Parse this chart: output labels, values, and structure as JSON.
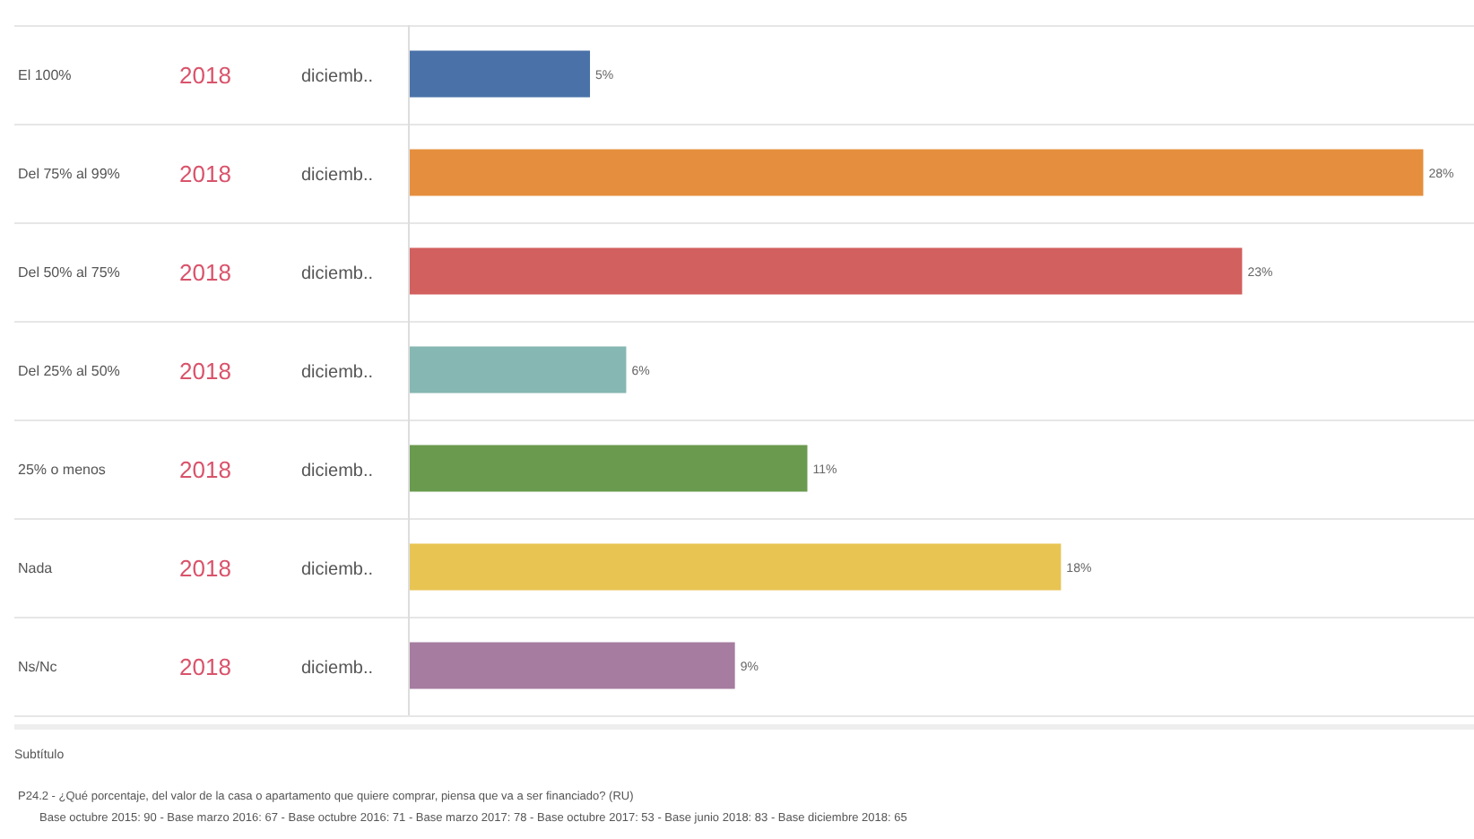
{
  "chart_data": {
    "type": "bar",
    "orientation": "horizontal",
    "categories": [
      "El 100%",
      "Del 75% al 99%",
      "Del 50% al 75%",
      "Del 25% al 50%",
      "25% o menos",
      "Nada",
      "Ns/Nc"
    ],
    "values": [
      5,
      28,
      23,
      6,
      11,
      18,
      9
    ],
    "colors": [
      "#4a72a8",
      "#e58f3e",
      "#d1605e",
      "#86b7b2",
      "#6a9a4e",
      "#e8c453",
      "#a67ca0"
    ],
    "value_labels": [
      "5%",
      "28%",
      "23%",
      "6%",
      "11%",
      "18%",
      "9%"
    ],
    "annotations": [
      "2018",
      "diciemb..",
      "2018",
      "diciemb..",
      "2018",
      "diciemb..",
      "2018",
      "diciemb..",
      "2018",
      "diciemb..",
      "2018",
      "diciemb..",
      "2018",
      "diciemb..",
      "Subtítulo",
      "P24.2 - ¿Qué porcentaje, del valor de la casa o apartamento que quiere comprar, piensa que va a ser financiado? (RU)",
      "Base octubre 2015: 90 - Base marzo 2016: 67 - Base octubre 2016: 71 - Base marzo 2017: 78 - Base octubre 2017: 53 - Base junio 2018: 83 - Base diciembre 2018: 65"
    ]
  }
}
